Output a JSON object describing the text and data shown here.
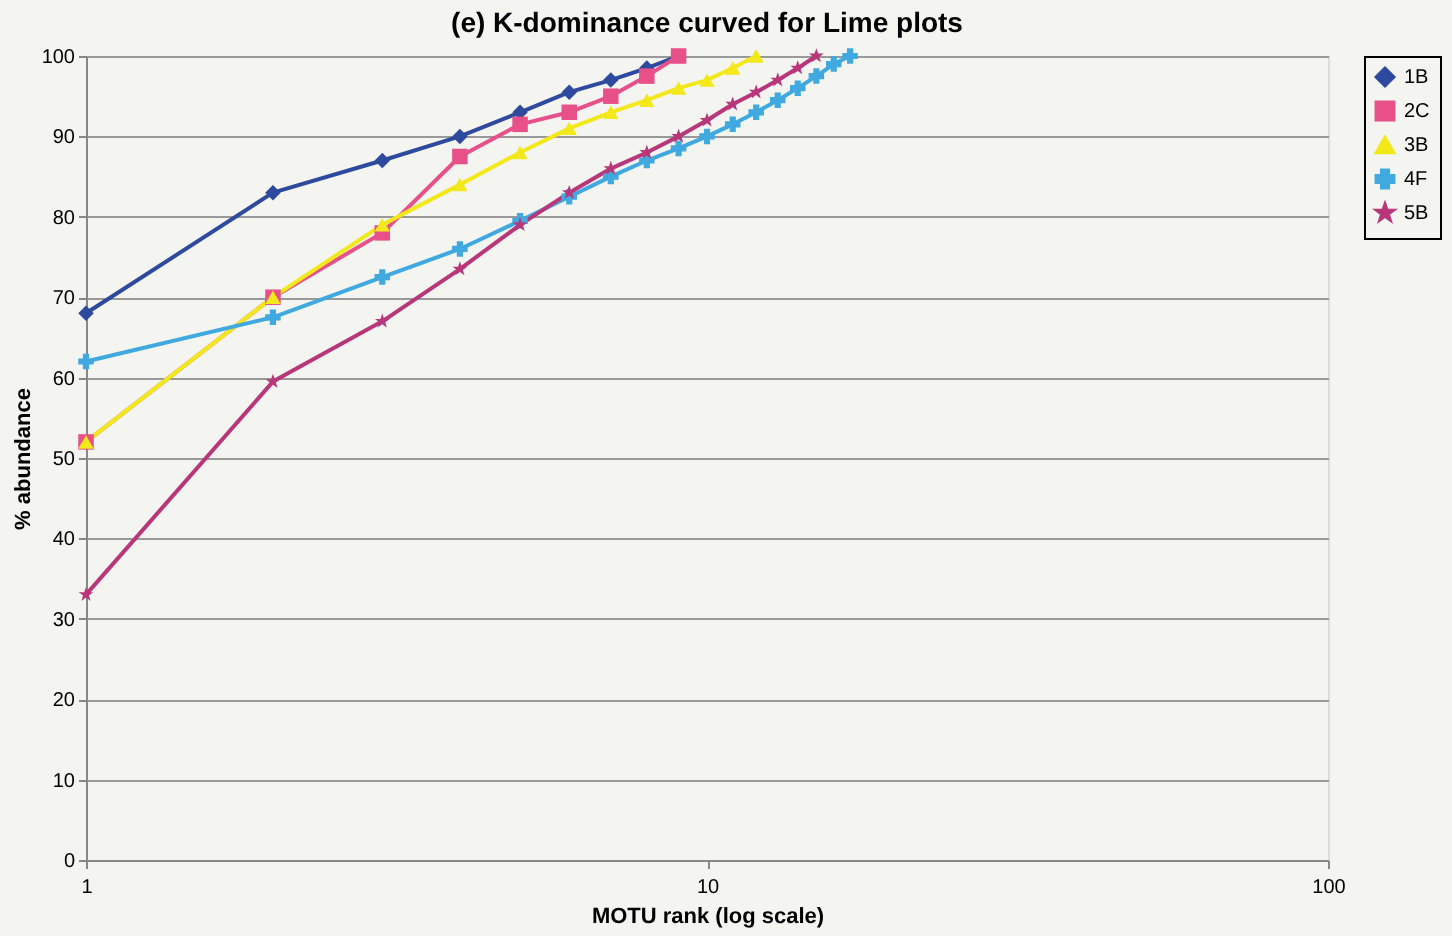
{
  "chart_data": {
    "type": "line",
    "title": "(e) K-dominance curved for Lime plots",
    "xlabel": "MOTU rank (log scale)",
    "ylabel": "% abundance",
    "log": "x",
    "xlim": [
      1,
      100
    ],
    "xticks": [
      1,
      10,
      100
    ],
    "ylim": [
      0,
      100
    ],
    "yticks": [
      0,
      10,
      20,
      30,
      40,
      50,
      60,
      70,
      80,
      90,
      100
    ],
    "grid": "y",
    "legend": "right",
    "series": [
      {
        "name": "1B",
        "color": "#2e4a9e",
        "marker": "diamond",
        "x": [
          1,
          2,
          3,
          4,
          5,
          6,
          7,
          8,
          9
        ],
        "values": [
          68,
          83,
          87,
          90,
          93,
          95.5,
          97,
          98.5,
          100
        ]
      },
      {
        "name": "2C",
        "color": "#e8508a",
        "marker": "square",
        "x": [
          1,
          2,
          3,
          4,
          5,
          6,
          7,
          8,
          9
        ],
        "values": [
          52,
          70,
          78,
          87.5,
          91.5,
          93,
          95,
          97.5,
          100
        ]
      },
      {
        "name": "3B",
        "color": "#f2e81a",
        "marker": "triangle",
        "x": [
          1,
          2,
          3,
          4,
          5,
          6,
          7,
          8,
          9,
          10,
          11,
          12
        ],
        "values": [
          52,
          70,
          79,
          84,
          88,
          91,
          93,
          94.5,
          96,
          97,
          98.5,
          100
        ]
      },
      {
        "name": "4F",
        "color": "#3fa9e0",
        "marker": "cross",
        "x": [
          1,
          2,
          3,
          4,
          5,
          6,
          7,
          8,
          9,
          10,
          11,
          12,
          13,
          14,
          15,
          16,
          17
        ],
        "values": [
          62,
          67.5,
          72.5,
          76,
          79.5,
          82.5,
          85,
          87,
          88.5,
          90,
          91.5,
          93,
          94.5,
          96,
          97.5,
          99,
          100
        ]
      },
      {
        "name": "5B",
        "color": "#b8367a",
        "marker": "star",
        "x": [
          1,
          2,
          3,
          4,
          5,
          6,
          7,
          8,
          9,
          10,
          11,
          12,
          13,
          14,
          15
        ],
        "values": [
          33,
          59.5,
          67,
          73.5,
          79,
          83,
          86,
          88,
          90,
          92,
          94,
          95.5,
          97,
          98.5,
          100
        ]
      }
    ]
  }
}
